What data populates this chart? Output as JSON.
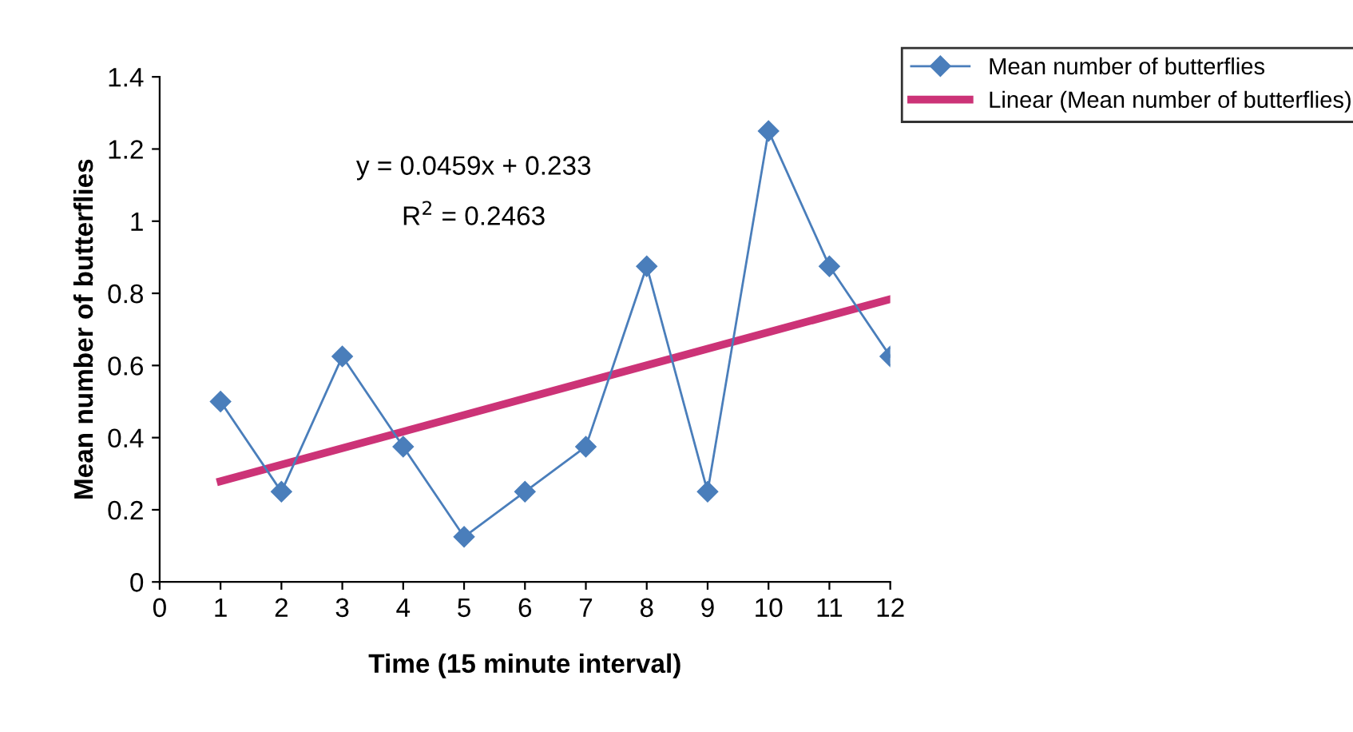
{
  "chart_data": {
    "type": "line",
    "xlabel": "Time (15 minute interval)",
    "ylabel": "Mean number of butterflies",
    "xlim": [
      0,
      12
    ],
    "xticks": [
      0,
      1,
      2,
      3,
      4,
      5,
      6,
      7,
      8,
      9,
      10,
      11,
      12
    ],
    "ylim": [
      0,
      1.4
    ],
    "yticks": [
      0,
      0.2,
      0.4,
      0.6,
      0.8,
      1,
      1.2,
      1.4
    ],
    "grid": false,
    "legend": "top right",
    "annotations": [
      "y = 0.0459x + 0.233",
      "R$^{2}$ = 0.2463"
    ],
    "series": [
      {
        "name": "Mean number of butterflies",
        "color": "#4a7ebb",
        "marker": "diamond",
        "x": [
          1,
          2,
          3,
          4,
          5,
          6,
          7,
          8,
          9,
          10,
          11,
          12
        ],
        "values": [
          0.5,
          0.25,
          0.625,
          0.375,
          0.125,
          0.25,
          0.375,
          0.875,
          0.25,
          1.25,
          0.875,
          0.625
        ]
      },
      {
        "name": "Linear (Mean number of butterflies)",
        "color": "#cc3377",
        "marker": "none",
        "x": [
          1,
          12
        ],
        "values": [
          0.279,
          0.784
        ]
      }
    ]
  }
}
